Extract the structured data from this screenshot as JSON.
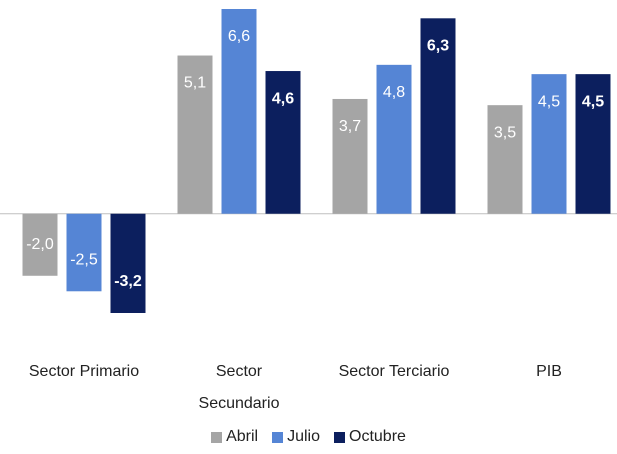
{
  "chart_data": {
    "type": "bar",
    "categories": [
      "Sector Primario",
      "Sector Secundario",
      "Sector Terciario",
      "PIB"
    ],
    "series": [
      {
        "name": "Abril",
        "color": "#a5a5a5",
        "values": [
          -2.0,
          5.1,
          3.7,
          3.5
        ],
        "value_labels": [
          "-2,0",
          "5,1",
          "3,7",
          "3,5"
        ]
      },
      {
        "name": "Julio",
        "color": "#5585d5",
        "values": [
          -2.5,
          6.6,
          4.8,
          4.5
        ],
        "value_labels": [
          "-2,5",
          "6,6",
          "4,8",
          "4,5"
        ]
      },
      {
        "name": "Octubre",
        "color": "#0c1f5e",
        "values": [
          -3.2,
          4.6,
          6.3,
          4.5
        ],
        "value_labels": [
          "-3,2",
          "4,6",
          "6,3",
          "4,5"
        ]
      }
    ],
    "legend": "bottom"
  }
}
